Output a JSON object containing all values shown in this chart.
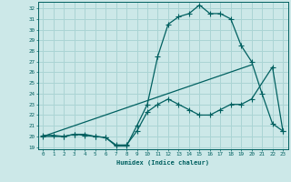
{
  "xlabel": "Humidex (Indice chaleur)",
  "bg_color": "#cce8e8",
  "grid_color": "#aad4d4",
  "line_color": "#006060",
  "xlim": [
    -0.5,
    23.5
  ],
  "ylim": [
    18.8,
    32.6
  ],
  "xticks": [
    0,
    1,
    2,
    3,
    4,
    5,
    6,
    7,
    8,
    9,
    10,
    11,
    12,
    13,
    14,
    15,
    16,
    17,
    18,
    19,
    20,
    21,
    22,
    23
  ],
  "yticks": [
    19,
    20,
    21,
    22,
    23,
    24,
    25,
    26,
    27,
    28,
    29,
    30,
    31,
    32
  ],
  "line1_x": [
    0,
    1,
    2,
    3,
    4,
    5,
    6,
    7,
    8,
    9,
    10,
    11,
    12,
    13,
    14,
    15,
    16,
    17,
    18,
    19,
    20,
    21,
    22,
    23
  ],
  "line1_y": [
    20.1,
    20.1,
    20.0,
    20.2,
    20.1,
    20.0,
    19.9,
    19.1,
    19.1,
    21.0,
    23.0,
    27.5,
    30.5,
    31.2,
    31.5,
    32.3,
    31.5,
    31.5,
    31.0,
    28.5,
    27.0,
    24.0,
    21.2,
    20.5
  ],
  "line2_x": [
    0,
    2,
    3,
    4,
    5,
    6,
    7,
    8,
    9,
    10,
    11,
    12,
    13,
    14,
    15,
    16,
    17,
    18,
    19,
    20,
    22,
    23
  ],
  "line2_y": [
    20.0,
    20.0,
    20.2,
    20.2,
    20.0,
    19.9,
    19.2,
    19.2,
    20.5,
    22.3,
    23.0,
    23.5,
    23.0,
    22.5,
    22.0,
    22.0,
    22.5,
    23.0,
    23.0,
    23.5,
    26.5,
    20.5
  ],
  "line3_x": [
    0,
    20
  ],
  "line3_y": [
    20.0,
    26.7
  ]
}
